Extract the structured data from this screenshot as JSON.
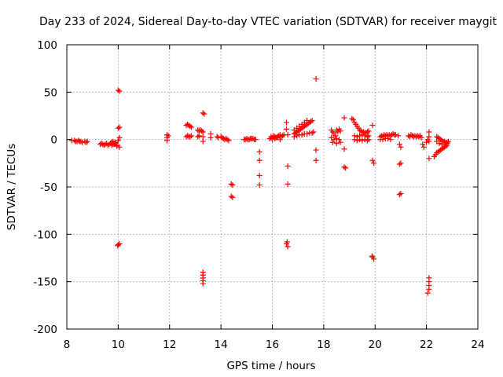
{
  "chart_data": {
    "type": "scatter",
    "title": "Day 233 of 2024, Sidereal Day-to-day VTEC variation (SDTVAR) for receiver maygit",
    "xlabel": "GPS time / hours",
    "ylabel": "SDTVAR / TECUs",
    "xlim": [
      8,
      24
    ],
    "ylim": [
      -200,
      100
    ],
    "xticks": [
      8,
      10,
      12,
      14,
      16,
      18,
      20,
      22,
      24
    ],
    "yticks": [
      100,
      50,
      0,
      -50,
      -100,
      -150,
      -200
    ],
    "grid": true,
    "marker": "+",
    "color": "#ff0000",
    "series": [
      {
        "name": "SDTVAR",
        "points": [
          [
            8.2,
            -1
          ],
          [
            8.3,
            -1
          ],
          [
            8.35,
            -2
          ],
          [
            8.4,
            -2
          ],
          [
            8.45,
            -1
          ],
          [
            8.5,
            -2
          ],
          [
            8.55,
            -2
          ],
          [
            8.6,
            -3
          ],
          [
            8.7,
            -2
          ],
          [
            8.75,
            -3
          ],
          [
            8.8,
            -2
          ],
          [
            9.3,
            -5
          ],
          [
            9.35,
            -4
          ],
          [
            9.4,
            -5
          ],
          [
            9.45,
            -6
          ],
          [
            9.5,
            -5
          ],
          [
            9.55,
            -4
          ],
          [
            9.6,
            -6
          ],
          [
            9.65,
            -5
          ],
          [
            9.7,
            -4
          ],
          [
            9.75,
            -6
          ],
          [
            9.8,
            -5
          ],
          [
            9.85,
            -4
          ],
          [
            9.9,
            -3
          ],
          [
            9.95,
            -6
          ],
          [
            9.75,
            -3
          ],
          [
            9.8,
            -2
          ],
          [
            9.85,
            -5
          ],
          [
            9.9,
            -4
          ],
          [
            10.0,
            52
          ],
          [
            10.05,
            51
          ],
          [
            10.0,
            12
          ],
          [
            10.05,
            13
          ],
          [
            10.0,
            -1
          ],
          [
            10.05,
            2
          ],
          [
            9.95,
            -7
          ],
          [
            10.05,
            -8
          ],
          [
            10.0,
            -111
          ],
          [
            10.05,
            -110
          ],
          [
            9.98,
            -112
          ],
          [
            11.9,
            5
          ],
          [
            11.9,
            2
          ],
          [
            11.95,
            4
          ],
          [
            11.9,
            -1
          ],
          [
            12.65,
            15
          ],
          [
            12.7,
            16
          ],
          [
            12.75,
            15
          ],
          [
            12.8,
            14
          ],
          [
            12.85,
            13
          ],
          [
            12.65,
            3
          ],
          [
            12.7,
            4
          ],
          [
            12.75,
            3
          ],
          [
            12.8,
            3
          ],
          [
            12.85,
            4
          ],
          [
            13.1,
            10
          ],
          [
            13.15,
            9
          ],
          [
            13.2,
            10
          ],
          [
            13.25,
            9
          ],
          [
            13.3,
            8
          ],
          [
            13.1,
            3
          ],
          [
            13.15,
            4
          ],
          [
            13.3,
            3
          ],
          [
            13.3,
            -2
          ],
          [
            13.35,
            27
          ],
          [
            13.3,
            28
          ],
          [
            13.3,
            -140
          ],
          [
            13.3,
            -143
          ],
          [
            13.3,
            -146
          ],
          [
            13.3,
            -149
          ],
          [
            13.3,
            -152
          ],
          [
            13.6,
            6
          ],
          [
            13.6,
            2
          ],
          [
            13.85,
            3
          ],
          [
            13.9,
            2
          ],
          [
            14.0,
            3
          ],
          [
            14.05,
            2
          ],
          [
            14.1,
            1
          ],
          [
            14.15,
            0
          ],
          [
            14.2,
            1
          ],
          [
            14.25,
            0
          ],
          [
            14.3,
            -1
          ],
          [
            14.4,
            -47
          ],
          [
            14.45,
            -48
          ],
          [
            14.4,
            -60
          ],
          [
            14.45,
            -61
          ],
          [
            14.9,
            0
          ],
          [
            14.95,
            0
          ],
          [
            15.0,
            1
          ],
          [
            15.05,
            0
          ],
          [
            15.1,
            0
          ],
          [
            15.15,
            1
          ],
          [
            15.2,
            1
          ],
          [
            15.25,
            1
          ],
          [
            15.3,
            0
          ],
          [
            15.35,
            0
          ],
          [
            15.5,
            -13
          ],
          [
            15.5,
            -22
          ],
          [
            15.5,
            -38
          ],
          [
            15.5,
            -48
          ],
          [
            15.9,
            1
          ],
          [
            15.95,
            3
          ],
          [
            16.0,
            2
          ],
          [
            16.05,
            4
          ],
          [
            16.1,
            3
          ],
          [
            16.15,
            2
          ],
          [
            16.2,
            3
          ],
          [
            16.25,
            4
          ],
          [
            16.3,
            5
          ],
          [
            16.35,
            3
          ],
          [
            16.4,
            4
          ],
          [
            16.45,
            5
          ],
          [
            16.0,
            0
          ],
          [
            16.1,
            1
          ],
          [
            16.2,
            2
          ],
          [
            16.3,
            0
          ],
          [
            16.55,
            18
          ],
          [
            16.55,
            11
          ],
          [
            16.6,
            5
          ],
          [
            16.6,
            -28
          ],
          [
            16.6,
            -47
          ],
          [
            16.55,
            -110
          ],
          [
            16.6,
            -113
          ],
          [
            16.58,
            -108
          ],
          [
            16.85,
            6
          ],
          [
            16.9,
            7
          ],
          [
            16.95,
            8
          ],
          [
            17.0,
            9
          ],
          [
            17.05,
            10
          ],
          [
            17.1,
            11
          ],
          [
            17.15,
            12
          ],
          [
            17.2,
            13
          ],
          [
            17.25,
            14
          ],
          [
            17.3,
            15
          ],
          [
            17.35,
            16
          ],
          [
            17.4,
            17
          ],
          [
            17.45,
            18
          ],
          [
            17.5,
            19
          ],
          [
            17.55,
            20
          ],
          [
            16.85,
            10
          ],
          [
            16.95,
            12
          ],
          [
            17.05,
            14
          ],
          [
            17.15,
            16
          ],
          [
            17.25,
            18
          ],
          [
            17.35,
            20
          ],
          [
            16.85,
            3
          ],
          [
            16.95,
            4
          ],
          [
            17.05,
            5
          ],
          [
            17.15,
            5
          ],
          [
            17.25,
            6
          ],
          [
            17.35,
            6
          ],
          [
            17.45,
            7
          ],
          [
            17.55,
            7
          ],
          [
            17.6,
            8
          ],
          [
            17.7,
            64
          ],
          [
            17.7,
            -11
          ],
          [
            17.7,
            -22
          ],
          [
            18.3,
            10
          ],
          [
            18.35,
            8
          ],
          [
            18.4,
            6
          ],
          [
            18.45,
            4
          ],
          [
            18.5,
            10
          ],
          [
            18.55,
            8
          ],
          [
            18.6,
            11
          ],
          [
            18.65,
            9
          ],
          [
            18.3,
            2
          ],
          [
            18.4,
            0
          ],
          [
            18.5,
            1
          ],
          [
            18.6,
            0
          ],
          [
            18.35,
            -3
          ],
          [
            18.5,
            -4
          ],
          [
            18.65,
            -3
          ],
          [
            18.8,
            23
          ],
          [
            18.8,
            -10
          ],
          [
            18.8,
            -29
          ],
          [
            18.85,
            -30
          ],
          [
            19.1,
            22
          ],
          [
            19.15,
            21
          ],
          [
            19.2,
            18
          ],
          [
            19.25,
            16
          ],
          [
            19.3,
            14
          ],
          [
            19.35,
            12
          ],
          [
            19.4,
            10
          ],
          [
            19.45,
            9
          ],
          [
            19.5,
            8
          ],
          [
            19.55,
            8
          ],
          [
            19.6,
            7
          ],
          [
            19.65,
            7
          ],
          [
            19.7,
            8
          ],
          [
            19.75,
            9
          ],
          [
            19.2,
            4
          ],
          [
            19.3,
            3
          ],
          [
            19.4,
            4
          ],
          [
            19.5,
            5
          ],
          [
            19.6,
            4
          ],
          [
            19.7,
            3
          ],
          [
            19.75,
            4
          ],
          [
            19.2,
            0
          ],
          [
            19.3,
            -1
          ],
          [
            19.4,
            0
          ],
          [
            19.5,
            -1
          ],
          [
            19.6,
            0
          ],
          [
            19.7,
            -1
          ],
          [
            19.75,
            0
          ],
          [
            19.9,
            15
          ],
          [
            19.9,
            -22
          ],
          [
            19.95,
            -25
          ],
          [
            19.9,
            -124
          ],
          [
            19.95,
            -126
          ],
          [
            19.88,
            -123
          ],
          [
            20.2,
            3
          ],
          [
            20.25,
            4
          ],
          [
            20.3,
            3
          ],
          [
            20.35,
            5
          ],
          [
            20.4,
            4
          ],
          [
            20.45,
            5
          ],
          [
            20.5,
            4
          ],
          [
            20.55,
            5
          ],
          [
            20.6,
            4
          ],
          [
            20.65,
            5
          ],
          [
            20.7,
            6
          ],
          [
            20.75,
            5
          ],
          [
            20.8,
            5
          ],
          [
            20.2,
            0
          ],
          [
            20.3,
            0
          ],
          [
            20.4,
            1
          ],
          [
            20.5,
            1
          ],
          [
            20.6,
            0
          ],
          [
            20.9,
            4
          ],
          [
            20.95,
            -5
          ],
          [
            21.0,
            -8
          ],
          [
            20.95,
            -26
          ],
          [
            21.0,
            -25
          ],
          [
            20.95,
            -58
          ],
          [
            21.0,
            -57
          ],
          [
            21.3,
            4
          ],
          [
            21.35,
            3
          ],
          [
            21.4,
            5
          ],
          [
            21.45,
            4
          ],
          [
            21.5,
            3
          ],
          [
            21.55,
            4
          ],
          [
            21.6,
            3
          ],
          [
            21.65,
            4
          ],
          [
            21.7,
            3
          ],
          [
            21.75,
            4
          ],
          [
            21.8,
            2
          ],
          [
            21.85,
            -5
          ],
          [
            21.9,
            -8
          ],
          [
            22.0,
            -3
          ],
          [
            22.05,
            0
          ],
          [
            22.1,
            -2
          ],
          [
            22.1,
            8
          ],
          [
            22.1,
            3
          ],
          [
            22.1,
            -20
          ],
          [
            22.1,
            -146
          ],
          [
            22.1,
            -150
          ],
          [
            22.1,
            -154
          ],
          [
            22.1,
            -158
          ],
          [
            22.05,
            -162
          ],
          [
            22.3,
            -18
          ],
          [
            22.35,
            -16
          ],
          [
            22.4,
            -14
          ],
          [
            22.45,
            -13
          ],
          [
            22.5,
            -12
          ],
          [
            22.55,
            -11
          ],
          [
            22.6,
            -10
          ],
          [
            22.65,
            -9
          ],
          [
            22.7,
            -8
          ],
          [
            22.75,
            -7
          ],
          [
            22.8,
            -6
          ],
          [
            22.4,
            3
          ],
          [
            22.45,
            2
          ],
          [
            22.5,
            1
          ],
          [
            22.55,
            0
          ],
          [
            22.6,
            -1
          ],
          [
            22.65,
            -2
          ],
          [
            22.7,
            -2
          ],
          [
            22.75,
            -3
          ],
          [
            22.8,
            -3
          ],
          [
            22.85,
            -2
          ],
          [
            22.4,
            -2
          ],
          [
            22.5,
            -4
          ],
          [
            22.6,
            -5
          ],
          [
            22.7,
            -5
          ],
          [
            22.8,
            -4
          ]
        ]
      }
    ]
  }
}
